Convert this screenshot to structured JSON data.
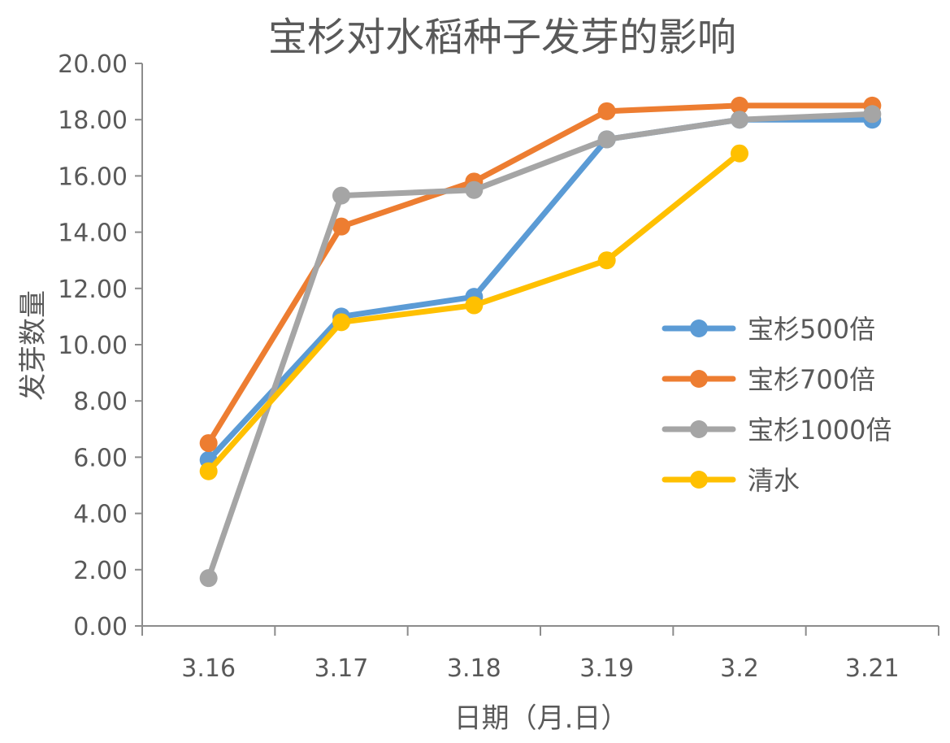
{
  "chart_data": {
    "type": "line",
    "title": "宝杉对水稻种子发芽的影响",
    "xlabel": "日期（月.日）",
    "ylabel": "发芽数量",
    "categories": [
      "3.16",
      "3.17",
      "3.18",
      "3.19",
      "3.2",
      "3.21"
    ],
    "ylim": [
      0,
      20
    ],
    "yticks": [
      "0.00",
      "2.00",
      "4.00",
      "6.00",
      "8.00",
      "10.00",
      "12.00",
      "14.00",
      "16.00",
      "18.00",
      "20.00"
    ],
    "grid": false,
    "legend_position": "right",
    "series": [
      {
        "name": "宝杉500倍",
        "color": "#5B9BD5",
        "values": [
          5.9,
          11.0,
          11.7,
          17.3,
          18.0,
          18.0
        ]
      },
      {
        "name": "宝杉700倍",
        "color": "#ED7D31",
        "values": [
          6.5,
          14.2,
          15.8,
          18.3,
          18.5,
          18.5
        ]
      },
      {
        "name": "宝杉1000倍",
        "color": "#A5A5A5",
        "values": [
          1.7,
          15.3,
          15.5,
          17.3,
          18.0,
          18.2
        ]
      },
      {
        "name": "清水",
        "color": "#FFC000",
        "values": [
          5.5,
          10.8,
          11.4,
          13.0,
          16.8,
          null
        ]
      }
    ]
  }
}
